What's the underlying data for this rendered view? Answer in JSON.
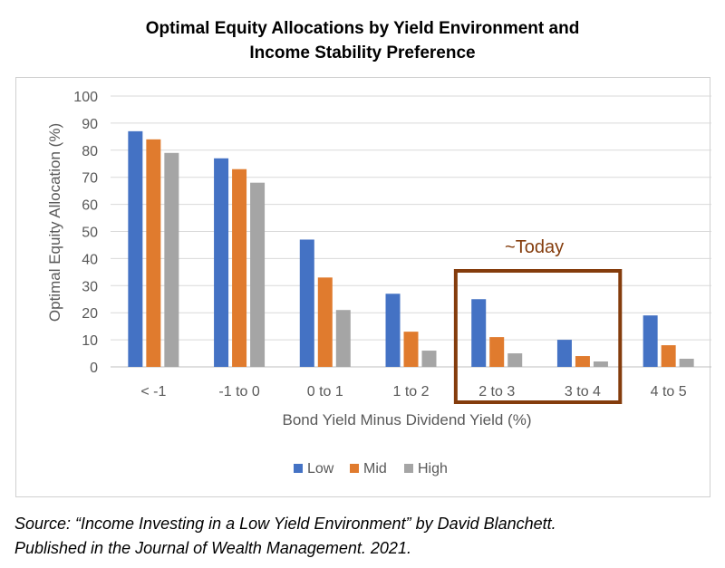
{
  "title_lines": [
    "Optimal Equity Allocations by Yield Environment and",
    "Income Stability Preference"
  ],
  "chart_data": {
    "type": "bar",
    "categories": [
      "< -1",
      "-1 to 0",
      "0 to 1",
      "1 to 2",
      "2 to 3",
      "3 to 4",
      "4 to 5"
    ],
    "series": [
      {
        "name": "Low",
        "color": "#4472c4",
        "values": [
          87,
          77,
          47,
          27,
          25,
          10,
          19
        ]
      },
      {
        "name": "Mid",
        "color": "#e07b2e",
        "values": [
          84,
          73,
          33,
          13,
          11,
          4,
          8
        ]
      },
      {
        "name": "High",
        "color": "#a5a5a5",
        "values": [
          79,
          68,
          21,
          6,
          5,
          2,
          3
        ]
      }
    ],
    "xlabel": "Bond Yield Minus Dividend Yield (%)",
    "ylabel": "Optimal Equity Allocation (%)",
    "ylim": [
      0,
      100
    ],
    "yticks": [
      0,
      10,
      20,
      30,
      40,
      50,
      60,
      70,
      80,
      90,
      100
    ],
    "grid": true,
    "legend_position": "bottom",
    "annotation": {
      "text": "~Today",
      "color": "#843c0c",
      "box_categories": [
        "2 to 3",
        "3 to 4"
      ]
    }
  },
  "source_lines": [
    "Source: “Income Investing in a Low Yield Environment” by David Blanchett.",
    "Published in the Journal of Wealth Management. 2021."
  ]
}
